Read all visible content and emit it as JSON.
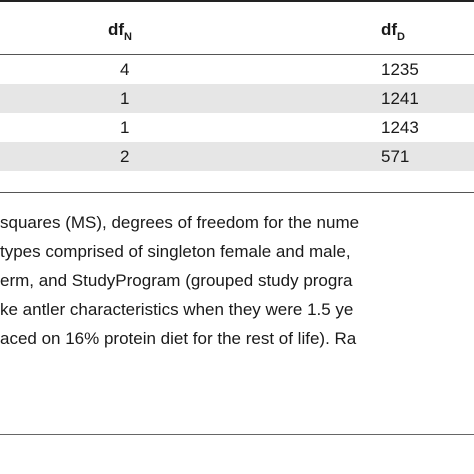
{
  "table": {
    "columns": [
      {
        "base": "df",
        "sub": "N"
      },
      {
        "base": "df",
        "sub": "D"
      }
    ],
    "rows": [
      {
        "df_n": "4",
        "df_d": "1235"
      },
      {
        "df_n": "1",
        "df_d": "1241"
      },
      {
        "df_n": "1",
        "df_d": "1243"
      },
      {
        "df_n": "2",
        "df_d": "571"
      }
    ]
  },
  "caption": {
    "lines": [
      "squares (MS), degrees of freedom for the nume",
      "types comprised of singleton female and male,",
      "erm, and StudyProgram (grouped study progra",
      "ke antler characteristics when they were 1.5 ye",
      "aced on 16% protein diet for the rest of life). Ra"
    ]
  }
}
